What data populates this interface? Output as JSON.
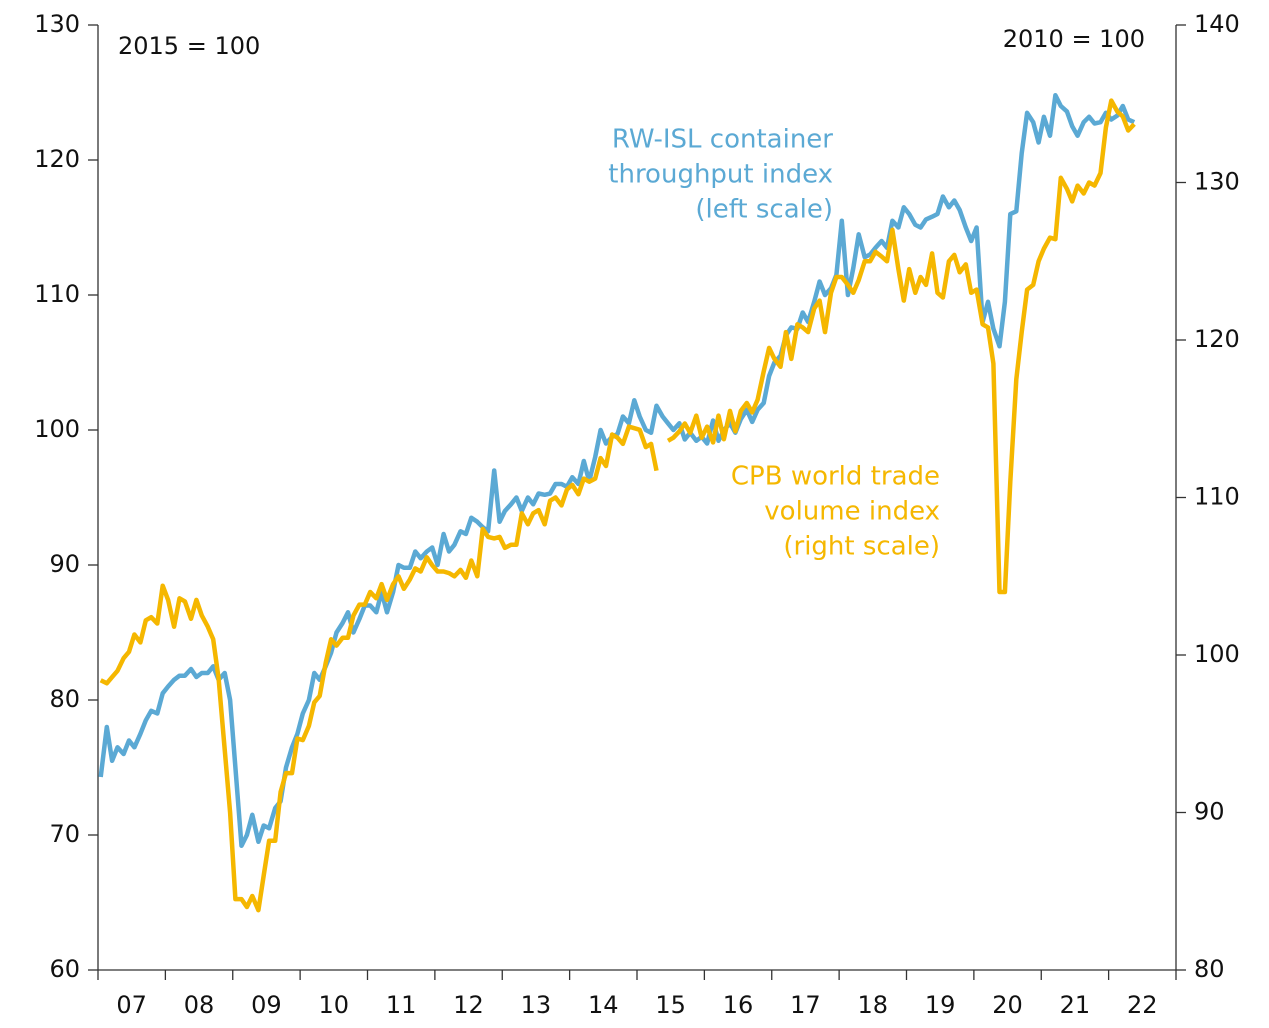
{
  "chart_data": {
    "type": "line",
    "annotations": [
      {
        "text": "2015 = 100"
      },
      {
        "text": "2010 = 100"
      },
      {
        "lines": [
          "RW-ISL container",
          "throughput index",
          "(left scale)"
        ],
        "color": "#5ba9d4"
      },
      {
        "lines": [
          "CPB world trade",
          "volume index",
          "(right scale)"
        ],
        "color": "#f5b700"
      }
    ],
    "xlim": [
      2007,
      2023
    ],
    "xticks": [
      {
        "value": 2007.5,
        "label": "07"
      },
      {
        "value": 2008.5,
        "label": "08"
      },
      {
        "value": 2009.5,
        "label": "09"
      },
      {
        "value": 2010.5,
        "label": "10"
      },
      {
        "value": 2011.5,
        "label": "11"
      },
      {
        "value": 2012.5,
        "label": "12"
      },
      {
        "value": 2013.5,
        "label": "13"
      },
      {
        "value": 2014.5,
        "label": "14"
      },
      {
        "value": 2015.5,
        "label": "15"
      },
      {
        "value": 2016.5,
        "label": "16"
      },
      {
        "value": 2017.5,
        "label": "17"
      },
      {
        "value": 2018.5,
        "label": "18"
      },
      {
        "value": 2019.5,
        "label": "19"
      },
      {
        "value": 2020.5,
        "label": "20"
      },
      {
        "value": 2021.5,
        "label": "21"
      },
      {
        "value": 2022.5,
        "label": "22"
      }
    ],
    "ylim": [
      60,
      130
    ],
    "yticks": [
      60,
      70,
      80,
      90,
      100,
      110,
      120,
      130
    ],
    "y2lim": [
      80,
      140
    ],
    "y2ticks": [
      80,
      90,
      100,
      110,
      120,
      130,
      140
    ],
    "x": [
      2007.04,
      2007.13,
      2007.21,
      2007.29,
      2007.38,
      2007.46,
      2007.54,
      2007.63,
      2007.71,
      2007.79,
      2007.88,
      2007.96,
      2008.04,
      2008.13,
      2008.21,
      2008.29,
      2008.38,
      2008.46,
      2008.54,
      2008.63,
      2008.71,
      2008.79,
      2008.88,
      2008.96,
      2009.04,
      2009.13,
      2009.21,
      2009.29,
      2009.38,
      2009.46,
      2009.54,
      2009.63,
      2009.71,
      2009.79,
      2009.88,
      2009.96,
      2010.04,
      2010.13,
      2010.21,
      2010.29,
      2010.38,
      2010.46,
      2010.54,
      2010.63,
      2010.71,
      2010.79,
      2010.88,
      2010.96,
      2011.04,
      2011.13,
      2011.21,
      2011.29,
      2011.38,
      2011.46,
      2011.54,
      2011.63,
      2011.71,
      2011.79,
      2011.88,
      2011.96,
      2012.04,
      2012.13,
      2012.21,
      2012.29,
      2012.38,
      2012.46,
      2012.54,
      2012.63,
      2012.71,
      2012.79,
      2012.88,
      2012.96,
      2013.04,
      2013.13,
      2013.21,
      2013.29,
      2013.38,
      2013.46,
      2013.54,
      2013.63,
      2013.71,
      2013.79,
      2013.88,
      2013.96,
      2014.04,
      2014.13,
      2014.21,
      2014.29,
      2014.38,
      2014.46,
      2014.54,
      2014.63,
      2014.71,
      2014.79,
      2014.88,
      2014.96,
      2015.04,
      2015.13,
      2015.21,
      2015.29,
      2015.38,
      2015.46,
      2015.54,
      2015.63,
      2015.71,
      2015.79,
      2015.88,
      2015.96,
      2016.04,
      2016.13,
      2016.21,
      2016.29,
      2016.38,
      2016.46,
      2016.54,
      2016.63,
      2016.71,
      2016.79,
      2016.88,
      2016.96,
      2017.04,
      2017.13,
      2017.21,
      2017.29,
      2017.38,
      2017.46,
      2017.54,
      2017.63,
      2017.71,
      2017.79,
      2017.88,
      2017.96,
      2018.04,
      2018.13,
      2018.21,
      2018.29,
      2018.38,
      2018.46,
      2018.54,
      2018.63,
      2018.71,
      2018.79,
      2018.88,
      2018.96,
      2019.04,
      2019.13,
      2019.21,
      2019.29,
      2019.38,
      2019.46,
      2019.54,
      2019.63,
      2019.71,
      2019.79,
      2019.88,
      2019.96,
      2020.04,
      2020.13,
      2020.21,
      2020.29,
      2020.38,
      2020.46,
      2020.54,
      2020.63,
      2020.71,
      2020.79,
      2020.88,
      2020.96,
      2021.04,
      2021.13,
      2021.21,
      2021.29,
      2021.38,
      2021.46,
      2021.54,
      2021.63,
      2021.71,
      2021.79,
      2021.88,
      2021.96,
      2022.04,
      2022.13,
      2022.21,
      2022.29,
      2022.38
    ],
    "series": [
      {
        "color": "#5ba9d4",
        "axis": "y",
        "values": [
          74.3,
          78,
          75.5,
          76.5,
          76,
          77,
          76.5,
          77.5,
          78.5,
          79.2,
          79,
          80.5,
          81,
          81.5,
          81.8,
          81.8,
          82.3,
          81.7,
          82,
          82,
          82.5,
          81.5,
          82,
          80,
          75,
          69.2,
          70,
          71.5,
          69.5,
          70.7,
          70.5,
          72,
          72.5,
          75,
          76.5,
          77.5,
          79,
          80,
          82,
          81.5,
          82.5,
          83.5,
          85,
          85.7,
          86.5,
          85,
          86,
          87,
          87,
          86.5,
          88,
          86.5,
          88,
          90,
          89.8,
          89.8,
          91,
          90.5,
          91,
          91.3,
          90,
          92.3,
          91,
          91.5,
          92.5,
          92.3,
          93.5,
          93.2,
          92.8,
          92.5,
          97,
          93.2,
          94,
          94.5,
          95,
          94,
          95,
          94.5,
          95.3,
          95.2,
          95.3,
          96,
          96,
          95.8,
          96.5,
          96,
          97.7,
          96.2,
          98,
          100,
          99,
          99.5,
          99.7,
          101,
          100.5,
          102.2,
          101,
          100,
          99.8,
          101.8,
          101,
          100.5,
          100,
          100.5,
          99.3,
          99.8,
          99.2,
          99.5,
          99,
          100.7,
          99.2,
          100,
          100.5,
          99.8,
          100.8,
          101.5,
          100.6,
          101.5,
          102,
          104,
          105,
          105.5,
          107,
          107.6,
          107.5,
          108.7,
          108,
          109.5,
          111,
          110,
          110.5,
          111.5,
          115.5,
          110,
          112,
          114.5,
          112.8,
          113,
          113.5,
          114,
          113.5,
          115.5,
          115,
          116.5,
          116,
          115.2,
          115,
          115.6,
          115.8,
          116,
          117.3,
          116.5,
          117,
          116.3,
          115,
          114,
          115,
          108,
          109.5,
          107.5,
          106.2,
          109.5,
          116,
          116.2,
          120.5,
          123.5,
          122.8,
          121.3,
          123.2,
          121.8,
          124.8,
          124,
          123.6,
          122.5,
          121.8,
          122.8,
          123.2,
          122.7,
          122.8,
          123.5,
          123,
          123.3,
          124,
          123,
          122.8
        ]
      },
      {
        "color": "#f5b700",
        "axis": "y2",
        "values": [
          98.4,
          98.2,
          98.6,
          99,
          99.8,
          100.2,
          101.3,
          100.8,
          102.2,
          102.4,
          102,
          104.4,
          103.5,
          101.8,
          103.6,
          103.4,
          102.3,
          103.5,
          102.5,
          101.8,
          101,
          98.5,
          94,
          90,
          84.5,
          84.5,
          84,
          84.7,
          83.8,
          86,
          88.2,
          88.2,
          91.3,
          92.5,
          92.5,
          94.7,
          94.6,
          95.5,
          97,
          97.4,
          99.5,
          101,
          100.6,
          101.1,
          101.1,
          102.5,
          103.2,
          103.2,
          104,
          103.6,
          104.5,
          103.5,
          104.5,
          105,
          104.2,
          104.8,
          105.5,
          105.3,
          106.2,
          105.7,
          105.3,
          105.3,
          105.2,
          105,
          105.4,
          104.9,
          106,
          105,
          108,
          107.5,
          107.4,
          107.5,
          106.8,
          107,
          107,
          109,
          108.3,
          109,
          109.2,
          108.3,
          109.8,
          110,
          109.5,
          110.5,
          110.8,
          110.2,
          111.2,
          111,
          111.2,
          112.5,
          112,
          114,
          113.8,
          113.4,
          114.5,
          114.4,
          114.3,
          113.2,
          113.4,
          111.7,
          null,
          113.6,
          113.8,
          114.2,
          114.7,
          114.1,
          115.2,
          113.8,
          114.5,
          113.5,
          115.2,
          113.7,
          115.5,
          114.2,
          115.5,
          116,
          115.4,
          116.2,
          118,
          119.5,
          118.8,
          118.3,
          120.5,
          118.8,
          121,
          120.8,
          120.5,
          122,
          122.5,
          120.5,
          123,
          124,
          124,
          123.5,
          123,
          123.8,
          125,
          125,
          125.6,
          125.3,
          125,
          127,
          124.5,
          122.5,
          124.5,
          123,
          124,
          123.5,
          125.5,
          123,
          122.7,
          125,
          125.4,
          124.3,
          124.8,
          123,
          123.2,
          121,
          120.8,
          118.5,
          104,
          104,
          111,
          117.5,
          120.5,
          123.2,
          123.5,
          125,
          125.8,
          126.5,
          126.4,
          130.3,
          129.6,
          128.8,
          129.8,
          129.3,
          130,
          129.8,
          130.6,
          133.5,
          135.2,
          134.5,
          134.2,
          133.3,
          133.7
        ]
      }
    ]
  }
}
